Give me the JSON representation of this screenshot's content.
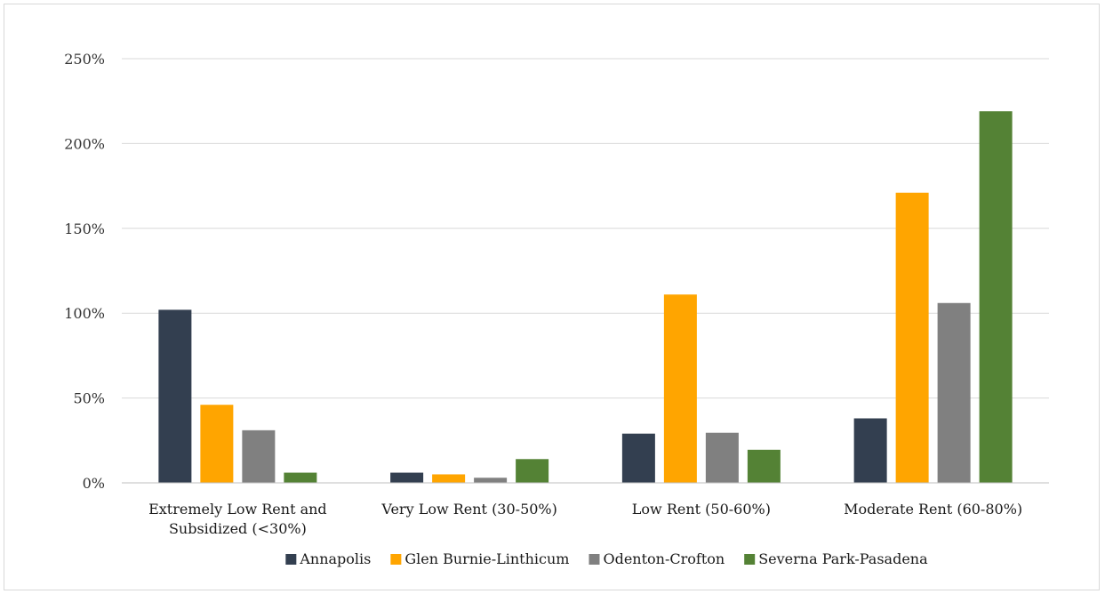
{
  "chart_data": {
    "type": "bar",
    "title": "",
    "xlabel": "",
    "ylabel": "",
    "ylim": [
      0,
      250
    ],
    "ytick_step": 50,
    "ytick_suffix": "%",
    "grid": true,
    "legend_position": "bottom",
    "categories": [
      [
        "Extremely Low Rent and",
        "Subsidized (<30%)"
      ],
      [
        "Very Low Rent (30-50%)"
      ],
      [
        "Low Rent (50-60%)"
      ],
      [
        "Moderate Rent (60-80%)"
      ]
    ],
    "series": [
      {
        "name": "Annapolis",
        "color": "#333f50",
        "values": [
          102,
          6,
          29,
          38
        ]
      },
      {
        "name": "Glen Burnie-Linthicum",
        "color": "#ffa500",
        "values": [
          46,
          5,
          111,
          171
        ]
      },
      {
        "name": "Odenton-Crofton",
        "color": "#808080",
        "values": [
          31,
          3,
          29.5,
          106
        ]
      },
      {
        "name": "Severna Park-Pasadena",
        "color": "#548235",
        "values": [
          6,
          14,
          19.5,
          219
        ]
      }
    ]
  }
}
